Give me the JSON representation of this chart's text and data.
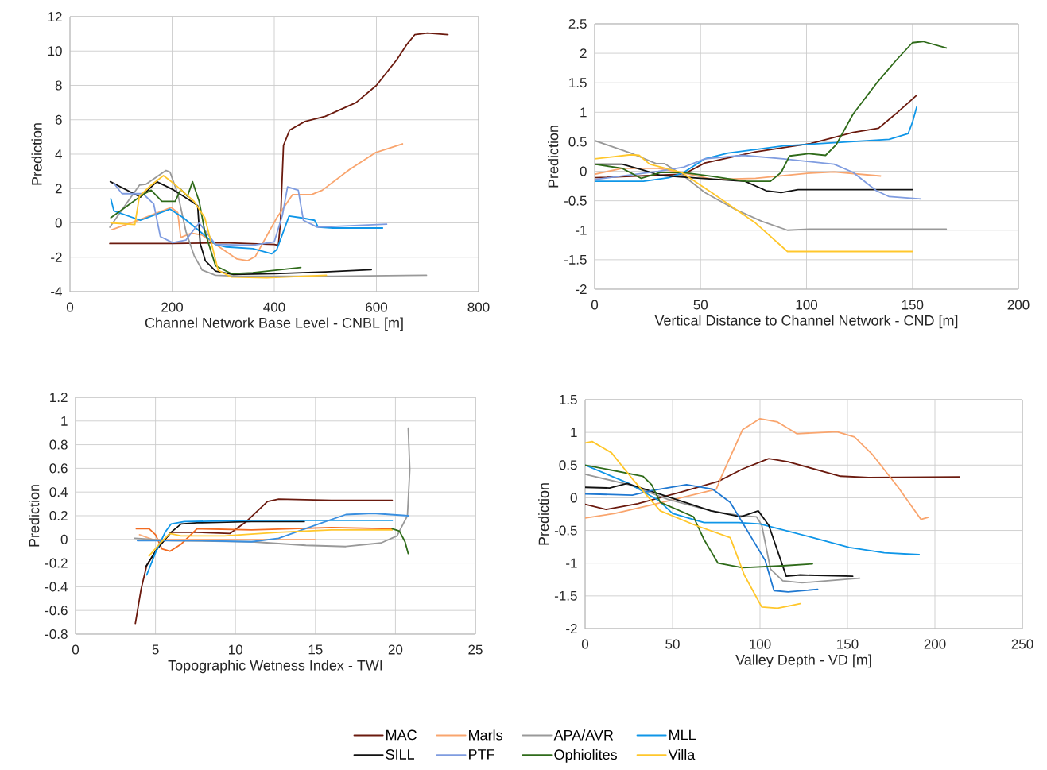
{
  "chart_data": [
    {
      "type": "line",
      "xlabel": "Channel Network Base Level - CNBL [m]",
      "ylabel": "Prediction",
      "xlim": [
        0,
        800
      ],
      "ylim": [
        -4,
        12
      ],
      "xticks": [
        0,
        200,
        400,
        600,
        800
      ],
      "yticks": [
        -4,
        -2,
        0,
        2,
        4,
        6,
        8,
        10,
        12
      ],
      "grid": true,
      "legend": "bottom",
      "series": [
        {
          "name": "MAC",
          "color": "#6b1a0e",
          "x": [
            78,
            200,
            300,
            400,
            408,
            412,
            418,
            430,
            460,
            500,
            560,
            600,
            640,
            660,
            675,
            700,
            740
          ],
          "values": [
            -1.2,
            -1.2,
            -1.15,
            -1.25,
            -1.3,
            0,
            4.5,
            5.4,
            5.9,
            6.2,
            7.0,
            8.0,
            9.5,
            10.4,
            10.95,
            11.05,
            10.95
          ]
        },
        {
          "name": "Marls",
          "color": "#f9a56e",
          "x": [
            82,
            138,
            198,
            211,
            217,
            237,
            258,
            285,
            327,
            348,
            363,
            405,
            436,
            473,
            494,
            547,
            599,
            651
          ],
          "values": [
            -0.4,
            0.2,
            0.9,
            0.6,
            -0.85,
            -0.6,
            -0.7,
            -1.25,
            -2.1,
            -2.2,
            -1.95,
            0.3,
            1.65,
            1.65,
            1.9,
            3.1,
            4.1,
            4.6
          ]
        },
        {
          "name": "APA/AVR",
          "color": "#999999",
          "x": [
            78,
            136,
            149,
            188,
            196,
            211,
            227,
            243,
            259,
            285,
            332,
            410,
            515,
            698
          ],
          "values": [
            -0.25,
            2.2,
            2.25,
            3.05,
            2.95,
            1.7,
            -0.5,
            -1.9,
            -2.75,
            -3.05,
            -3.1,
            -3.1,
            -3.1,
            -3.05
          ]
        },
        {
          "name": "MLL",
          "color": "#0f96e8",
          "x": [
            80,
            86,
            138,
            196,
            222,
            285,
            306,
            358,
            395,
            405,
            429,
            452,
            479,
            486,
            515,
            612
          ],
          "values": [
            1.4,
            0.7,
            0.15,
            0.8,
            0.3,
            -1.25,
            -1.4,
            -1.5,
            -1.8,
            -1.55,
            0.4,
            0.3,
            0.15,
            -0.25,
            -0.3,
            -0.3
          ]
        },
        {
          "name": "SILL",
          "color": "#111111",
          "x": [
            79,
            138,
            170,
            201,
            238,
            250,
            255,
            265,
            285,
            320,
            400,
            500,
            590
          ],
          "values": [
            2.4,
            1.5,
            2.4,
            1.95,
            1.25,
            1.0,
            -1.2,
            -2.2,
            -2.8,
            -3.0,
            -2.95,
            -2.85,
            -2.72
          ]
        },
        {
          "name": "PTF",
          "color": "#7f9ce0",
          "x": [
            86,
            102,
            143,
            164,
            177,
            201,
            227,
            253,
            285,
            358,
            400,
            416,
            426,
            447,
            457,
            484,
            620
          ],
          "values": [
            2.3,
            1.7,
            1.7,
            1.1,
            -0.8,
            -1.15,
            -1.0,
            0,
            -1.25,
            -1.3,
            -1.1,
            0.45,
            2.1,
            1.9,
            0.15,
            -0.25,
            -0.08
          ]
        },
        {
          "name": "Ophiolites",
          "color": "#2f6b1a",
          "x": [
            80,
            143,
            159,
            180,
            206,
            217,
            230,
            240,
            253,
            264,
            285,
            316,
            358,
            452
          ],
          "values": [
            0.3,
            1.65,
            1.9,
            1.25,
            1.25,
            1.95,
            1.55,
            2.4,
            1.25,
            -0.5,
            -2.5,
            -2.95,
            -2.9,
            -2.6
          ]
        },
        {
          "name": "Villa",
          "color": "#ffc72c",
          "x": [
            80,
            127,
            136,
            159,
            183,
            201,
            243,
            264,
            280,
            290,
            316,
            385,
            502
          ],
          "values": [
            0,
            -0.1,
            1.55,
            2.2,
            2.75,
            2.35,
            1.25,
            0.3,
            -1.55,
            -2.75,
            -3.15,
            -3.2,
            -3.05
          ]
        }
      ]
    },
    {
      "type": "line",
      "xlabel": "Vertical Distance to Channel Network - CND [m]",
      "ylabel": "Prediction",
      "xlim": [
        0,
        200
      ],
      "ylim": [
        -2,
        2.5
      ],
      "xticks": [
        0,
        50,
        100,
        150,
        200
      ],
      "yticks": [
        -2,
        -1.5,
        -1,
        -0.5,
        0,
        0.5,
        1,
        1.5,
        2,
        2.5
      ],
      "grid": true,
      "series": [
        {
          "color": "#6b1a0e",
          "x": [
            0,
            42,
            52,
            76,
            102,
            122,
            134,
            142,
            152
          ],
          "values": [
            -0.11,
            -0.05,
            0.14,
            0.33,
            0.47,
            0.66,
            0.73,
            0.97,
            1.29
          ]
        },
        {
          "color": "#f9a56e",
          "x": [
            0,
            13,
            30,
            41,
            56,
            76,
            102,
            113,
            135
          ],
          "values": [
            -0.05,
            0.05,
            0.05,
            -0.02,
            -0.14,
            -0.12,
            -0.03,
            -0.01,
            -0.08
          ]
        },
        {
          "color": "#999999",
          "x": [
            0,
            17,
            29,
            33,
            41,
            52,
            66,
            79,
            91,
            102,
            166
          ],
          "values": [
            0.52,
            0.31,
            0.13,
            0.13,
            -0.05,
            -0.36,
            -0.64,
            -0.85,
            -1.0,
            -0.98,
            -0.98
          ]
        },
        {
          "color": "#0f96e8",
          "x": [
            0,
            23,
            35,
            42,
            52,
            63,
            89,
            116,
            139,
            148,
            150,
            152
          ],
          "values": [
            -0.17,
            -0.17,
            -0.11,
            -0.02,
            0.21,
            0.31,
            0.43,
            0.49,
            0.54,
            0.64,
            0.83,
            1.09
          ]
        },
        {
          "color": "#111111",
          "x": [
            0,
            13,
            23,
            31,
            50,
            71,
            81,
            88,
            96,
            116,
            150
          ],
          "values": [
            0.12,
            0.12,
            0.02,
            -0.07,
            -0.12,
            -0.17,
            -0.33,
            -0.36,
            -0.31,
            -0.31,
            -0.31
          ]
        },
        {
          "color": "#7f9ce0",
          "x": [
            0,
            30,
            42,
            52,
            70,
            89,
            113,
            122,
            133,
            139,
            154
          ],
          "values": [
            -0.14,
            0,
            0.07,
            0.21,
            0.27,
            0.21,
            0.12,
            -0.02,
            -0.33,
            -0.43,
            -0.47
          ]
        },
        {
          "color": "#2f6b1a",
          "x": [
            0,
            13,
            22,
            31,
            42,
            56,
            71,
            83,
            88,
            92,
            101,
            109,
            114,
            122,
            133,
            142,
            150,
            155,
            166
          ],
          "values": [
            0.12,
            0.05,
            -0.12,
            -0.02,
            -0.02,
            -0.09,
            -0.17,
            -0.17,
            -0.02,
            0.26,
            0.3,
            0.27,
            0.45,
            0.97,
            1.49,
            1.87,
            2.18,
            2.2,
            2.09
          ]
        },
        {
          "color": "#ffc72c",
          "x": [
            0,
            17,
            21,
            26,
            41,
            56,
            76,
            91,
            102,
            150
          ],
          "values": [
            0.21,
            0.28,
            0.27,
            0.12,
            -0.02,
            -0.38,
            -0.88,
            -1.36,
            -1.36,
            -1.36
          ]
        }
      ]
    },
    {
      "type": "line",
      "xlabel": "Topographic Wetness Index - TWI",
      "ylabel": "Prediction",
      "xlim": [
        0,
        25
      ],
      "ylim": [
        -0.8,
        1.2
      ],
      "xticks": [
        0,
        5,
        10,
        15,
        20,
        25
      ],
      "yticks": [
        -0.8,
        -0.6,
        -0.4,
        -0.2,
        0,
        0.2,
        0.4,
        0.6,
        0.8,
        1,
        1.2
      ],
      "grid": true,
      "series": [
        {
          "color": "#6b1a0e",
          "x": [
            3.74,
            4.1,
            4.45,
            5.1,
            5.97,
            7.6,
            9.66,
            10.67,
            12,
            12.7,
            16,
            19.8
          ],
          "values": [
            -0.71,
            -0.42,
            -0.22,
            -0.08,
            0.06,
            0.06,
            0.05,
            0.15,
            0.32,
            0.34,
            0.33,
            0.33
          ]
        },
        {
          "color": "#f26b21",
          "x": [
            3.8,
            4.6,
            5,
            5.4,
            5.9,
            6.6,
            7.6,
            11,
            16,
            19.8
          ],
          "values": [
            0.09,
            0.09,
            0.04,
            -0.08,
            -0.1,
            -0.04,
            0.09,
            0.08,
            0.1,
            0.09
          ]
        },
        {
          "color": "#f9b080",
          "x": [
            4,
            4.8,
            9.3,
            15
          ],
          "values": [
            0.04,
            0,
            0,
            0
          ]
        },
        {
          "color": "#999999",
          "x": [
            3.7,
            6,
            11,
            14.4,
            16.9,
            19.1,
            20.1,
            20.75,
            20.9,
            20.8
          ],
          "values": [
            0.01,
            -0.01,
            -0.02,
            -0.05,
            -0.06,
            -0.03,
            0.03,
            0.2,
            0.59,
            0.94
          ]
        },
        {
          "color": "#111111",
          "x": [
            4.4,
            5.1,
            5.97,
            6.6,
            7.6,
            11,
            14.3
          ],
          "values": [
            -0.23,
            -0.08,
            0.06,
            0.13,
            0.14,
            0.15,
            0.15
          ]
        },
        {
          "color": "#0f96e8",
          "x": [
            4.45,
            5.04,
            5.6,
            5.97,
            6.8,
            11,
            19.8
          ],
          "values": [
            -0.3,
            -0.1,
            0.06,
            0.13,
            0.15,
            0.16,
            0.16
          ]
        },
        {
          "color": "#3a8fe0",
          "x": [
            3.87,
            7.6,
            11,
            12.7,
            15.2,
            16.9,
            18.6,
            20.8
          ],
          "values": [
            -0.01,
            -0.01,
            -0.02,
            0.01,
            0.13,
            0.21,
            0.22,
            0.2
          ]
        },
        {
          "color": "#ffc72c",
          "x": [
            4.6,
            5.3,
            5.9,
            6.6,
            9.3,
            12.7,
            16,
            19.8
          ],
          "values": [
            -0.14,
            -0.03,
            0.05,
            0.03,
            0.03,
            0.06,
            0.08,
            0.08
          ]
        },
        {
          "color": "#2f6b1a",
          "x": [
            19.8,
            20.25,
            20.6,
            20.8
          ],
          "values": [
            0.09,
            0.07,
            -0.02,
            -0.12
          ]
        }
      ]
    },
    {
      "type": "line",
      "xlabel": "Valley Depth - VD  [m]",
      "ylabel": "Prediction",
      "xlim": [
        0,
        250
      ],
      "ylim": [
        -2,
        1.5
      ],
      "xticks": [
        0,
        50,
        100,
        150,
        200,
        250
      ],
      "yticks": [
        -2,
        -1.5,
        -1,
        -0.5,
        0,
        0.5,
        1,
        1.5
      ],
      "grid": true,
      "series": [
        {
          "color": "#6b1a0e",
          "x": [
            0,
            12,
            30,
            55,
            76,
            90,
            105,
            116,
            146,
            162,
            214
          ],
          "values": [
            -0.1,
            -0.18,
            -0.09,
            0.09,
            0.25,
            0.44,
            0.6,
            0.55,
            0.33,
            0.31,
            0.32
          ]
        },
        {
          "color": "#f9a56e",
          "x": [
            0,
            17,
            38,
            75,
            78,
            90,
            100,
            110,
            121,
            144,
            154,
            164,
            179,
            192,
            196
          ],
          "values": [
            -0.31,
            -0.24,
            -0.11,
            0.13,
            0.33,
            1.04,
            1.21,
            1.16,
            0.98,
            1.01,
            0.93,
            0.67,
            0.16,
            -0.33,
            -0.3
          ]
        },
        {
          "color": "#999999",
          "x": [
            0,
            25,
            47,
            72,
            88,
            98,
            101,
            106,
            113,
            124,
            157
          ],
          "values": [
            0.36,
            0.2,
            -0.02,
            -0.2,
            -0.27,
            -0.29,
            -0.42,
            -1.09,
            -1.27,
            -1.3,
            -1.23
          ]
        },
        {
          "color": "#0f96e8",
          "x": [
            0,
            25,
            42,
            50,
            68,
            88,
            100,
            129,
            151,
            171,
            191
          ],
          "values": [
            0.5,
            0.22,
            -0.04,
            -0.24,
            -0.38,
            -0.38,
            -0.4,
            -0.6,
            -0.76,
            -0.84,
            -0.87
          ]
        },
        {
          "color": "#111111",
          "x": [
            0,
            14,
            24,
            47,
            72,
            89,
            99,
            105,
            115,
            123,
            153
          ],
          "values": [
            0.16,
            0.15,
            0.22,
            0.02,
            -0.2,
            -0.29,
            -0.2,
            -0.42,
            -1.2,
            -1.18,
            -1.2
          ]
        },
        {
          "color": "#1f78d1",
          "x": [
            0,
            27,
            38,
            58,
            73,
            83,
            103,
            108,
            116,
            133
          ],
          "values": [
            0.06,
            0.04,
            0.11,
            0.2,
            0.13,
            -0.07,
            -0.96,
            -1.42,
            -1.44,
            -1.4
          ]
        },
        {
          "color": "#2f6b1a",
          "x": [
            0,
            33,
            38,
            43,
            62,
            68,
            76,
            90,
            113,
            130
          ],
          "values": [
            0.5,
            0.33,
            0.2,
            -0.07,
            -0.29,
            -0.64,
            -1.0,
            -1.07,
            -1.04,
            -1.01
          ]
        },
        {
          "color": "#ffc72c",
          "x": [
            0,
            4,
            15,
            27,
            43,
            63,
            83,
            91,
            101,
            110,
            123
          ],
          "values": [
            0.84,
            0.86,
            0.69,
            0.29,
            -0.2,
            -0.42,
            -0.61,
            -1.18,
            -1.67,
            -1.69,
            -1.62
          ]
        }
      ]
    }
  ]
}
